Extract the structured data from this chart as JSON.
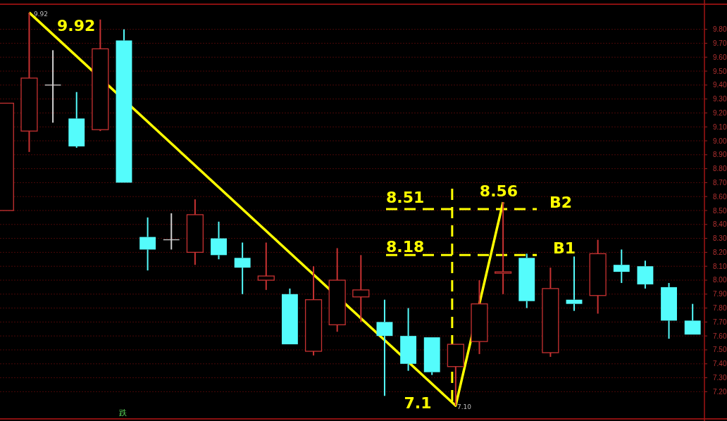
{
  "chart_data": {
    "type": "candlestick",
    "categories": [
      null,
      null,
      null,
      null,
      null,
      null,
      null,
      null,
      null,
      null,
      null,
      null,
      null,
      null,
      null,
      null,
      null,
      null,
      null,
      null,
      null,
      null,
      null,
      null,
      null,
      null,
      null,
      null,
      null,
      null
    ],
    "ohlc": [
      [
        8.5,
        9.27,
        8.5,
        9.27
      ],
      [
        9.07,
        9.92,
        8.92,
        9.45
      ],
      [
        9.4,
        9.65,
        9.13,
        9.4
      ],
      [
        9.16,
        9.35,
        8.95,
        8.96
      ],
      [
        9.08,
        9.87,
        9.07,
        9.66
      ],
      [
        9.72,
        9.8,
        8.7,
        8.7
      ],
      [
        8.31,
        8.45,
        8.07,
        8.22
      ],
      [
        8.29,
        8.48,
        8.22,
        8.29
      ],
      [
        8.2,
        8.58,
        8.11,
        8.47
      ],
      [
        8.3,
        8.42,
        8.15,
        8.18
      ],
      [
        8.16,
        8.27,
        7.9,
        8.09
      ],
      [
        8.0,
        8.27,
        7.93,
        8.03
      ],
      [
        7.9,
        7.94,
        7.54,
        7.54
      ],
      [
        7.49,
        8.1,
        7.46,
        7.86
      ],
      [
        7.68,
        8.23,
        7.63,
        8.0
      ],
      [
        7.88,
        8.18,
        7.7,
        7.93
      ],
      [
        7.7,
        7.86,
        7.17,
        7.6
      ],
      [
        7.6,
        7.8,
        7.35,
        7.4
      ],
      [
        7.59,
        7.59,
        7.32,
        7.34
      ],
      [
        7.38,
        7.54,
        7.1,
        7.54
      ],
      [
        7.56,
        8.0,
        7.47,
        7.83
      ],
      [
        8.05,
        8.56,
        7.9,
        8.06
      ],
      [
        8.16,
        8.19,
        7.8,
        7.85
      ],
      [
        7.48,
        8.09,
        7.45,
        7.94
      ],
      [
        7.86,
        8.17,
        7.78,
        7.83
      ],
      [
        7.89,
        8.29,
        7.76,
        8.19
      ],
      [
        8.11,
        8.22,
        7.98,
        8.06
      ],
      [
        8.1,
        8.14,
        7.94,
        7.97
      ],
      [
        7.95,
        7.98,
        7.58,
        7.71
      ],
      [
        7.71,
        7.83,
        7.61,
        7.61
      ]
    ],
    "colors": [
      "#c83232",
      "#c83232",
      "#d0d0d0",
      "#54fcfc",
      "#c83232",
      "#54fcfc",
      "#54fcfc",
      "#d0d0d0",
      "#c83232",
      "#54fcfc",
      "#54fcfc",
      "#c83232",
      "#54fcfc",
      "#c83232",
      "#c83232",
      "#c83232",
      "#54fcfc",
      "#54fcfc",
      "#54fcfc",
      "#c83232",
      "#c83232",
      "#c83232",
      "#54fcfc",
      "#c83232",
      "#54fcfc",
      "#c83232",
      "#54fcfc",
      "#54fcfc",
      "#54fcfc",
      "#54fcfc"
    ],
    "series": [
      {
        "type": "line",
        "color": "#ffff00",
        "values": [
          null,
          9.92,
          null,
          null,
          null,
          null,
          null,
          null,
          null,
          null,
          null,
          null,
          null,
          null,
          null,
          null,
          null,
          null,
          null,
          7.1,
          null,
          8.56,
          null,
          null,
          null,
          null,
          null,
          null,
          null,
          null
        ]
      }
    ],
    "ylim": [
      7.02,
      9.98
    ],
    "yticks": [
      {
        "value": 7.2,
        "label": "7.20"
      },
      {
        "value": 7.3,
        "label": "7.30"
      },
      {
        "value": 7.4,
        "label": "7.40"
      },
      {
        "value": 7.5,
        "label": "7.50"
      },
      {
        "value": 7.6,
        "label": "7.60"
      },
      {
        "value": 7.7,
        "label": "7.70"
      },
      {
        "value": 7.8,
        "label": "7.80"
      },
      {
        "value": 7.9,
        "label": "7.90"
      },
      {
        "value": 8.0,
        "label": "8.00"
      },
      {
        "value": 8.1,
        "label": "8.10"
      },
      {
        "value": 8.2,
        "label": "8.20"
      },
      {
        "value": 8.3,
        "label": "8.30"
      },
      {
        "value": 8.4,
        "label": "8.40"
      },
      {
        "value": 8.5,
        "label": "8.50"
      },
      {
        "value": 8.6,
        "label": "8.60"
      },
      {
        "value": 8.7,
        "label": "8.70"
      },
      {
        "value": 8.8,
        "label": "8.80"
      },
      {
        "value": 8.9,
        "label": "8.90"
      },
      {
        "value": 9.0,
        "label": "9.00"
      },
      {
        "value": 9.1,
        "label": "9.10"
      },
      {
        "value": 9.2,
        "label": "9.20"
      },
      {
        "value": 9.3,
        "label": "9.30"
      },
      {
        "value": 9.4,
        "label": "9.40"
      },
      {
        "value": 9.5,
        "label": "9.50"
      },
      {
        "value": 9.6,
        "label": "9.60"
      },
      {
        "value": 9.7,
        "label": "9.70"
      },
      {
        "value": 9.8,
        "label": "9.80"
      }
    ],
    "grid": "y",
    "tick_labels": "y",
    "ref_lines": [
      {
        "axis": "y",
        "value": 8.51,
        "label": "B2",
        "color": "#ffff00",
        "line_style": "dashed"
      },
      {
        "axis": "y",
        "value": 8.18,
        "label": "B1",
        "color": "#ffff00",
        "line_style": "dashed"
      }
    ],
    "annotations": [
      "9.92",
      "7.1",
      "8.56",
      "8.51",
      "8.18",
      "9.92",
      "7.10",
      "跌"
    ]
  }
}
